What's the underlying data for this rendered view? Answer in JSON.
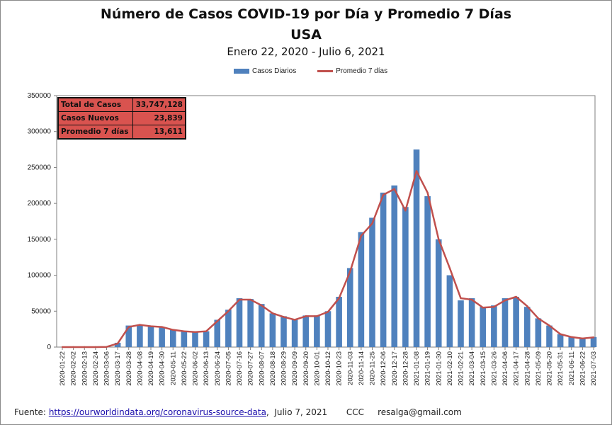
{
  "header": {
    "title": "Número de  Casos  COVID-19 por Día y Promedio 7 Días",
    "subtitle": "USA",
    "date_range": "Enero 22, 2020 - Julio 6, 2021"
  },
  "legend": {
    "bars": "Casos Diarios",
    "line": "Promedio 7 días"
  },
  "stats": {
    "total_label": "Total de Casos",
    "total_value": "33,747,128",
    "new_label": "Casos Nuevos",
    "new_value": "23,839",
    "avg_label": "Promedio 7 días",
    "avg_value": "13,611"
  },
  "footer": {
    "prefix": "Fuente:",
    "link": "https://ourworldindata.org/coronavirus-source-data",
    "suffix": ",  Julio 7, 2021       CCC     resalga@gmail.com"
  },
  "colors": {
    "bars": "#4f81bd",
    "line": "#c0504d",
    "stats_bg": "#d9534f"
  },
  "chart_data": {
    "type": "bar",
    "title": "Número de  Casos  COVID-19 por Día y Promedio 7 Días",
    "ylim": [
      0,
      350000
    ],
    "y_ticks": [
      0,
      50000,
      100000,
      150000,
      200000,
      250000,
      300000,
      350000
    ],
    "x_tick_labels": [
      "2020-01-22",
      "2020-02-02",
      "2020-02-13",
      "2020-02-24",
      "2020-03-06",
      "2020-03-17",
      "2020-03-28",
      "2020-04-08",
      "2020-04-19",
      "2020-04-30",
      "2020-05-11",
      "2020-05-22",
      "2020-06-02",
      "2020-06-13",
      "2020-06-24",
      "2020-07-05",
      "2020-07-16",
      "2020-07-27",
      "2020-08-07",
      "2020-08-18",
      "2020-08-29",
      "2020-09-09",
      "2020-09-20",
      "2020-10-01",
      "2020-10-12",
      "2020-10-23",
      "2020-11-03",
      "2020-11-14",
      "2020-11-25",
      "2020-12-06",
      "2020-12-17",
      "2020-12-28",
      "2021-01-08",
      "2021-01-19",
      "2021-01-30",
      "2021-02-10",
      "2021-02-21",
      "2021-03-04",
      "2021-03-15",
      "2021-03-26",
      "2021-04-06",
      "2021-04-17",
      "2021-04-28",
      "2021-05-09",
      "2021-05-20",
      "2021-05-31",
      "2021-06-11",
      "2021-06-22",
      "2021-07-03"
    ],
    "series": [
      {
        "name": "Casos Diarios",
        "kind": "bar",
        "x": [
          "2020-01-22",
          "2020-02-02",
          "2020-02-13",
          "2020-02-24",
          "2020-03-06",
          "2020-03-17",
          "2020-03-28",
          "2020-04-08",
          "2020-04-19",
          "2020-04-30",
          "2020-05-11",
          "2020-05-22",
          "2020-06-02",
          "2020-06-13",
          "2020-06-24",
          "2020-07-05",
          "2020-07-16",
          "2020-07-27",
          "2020-08-07",
          "2020-08-18",
          "2020-08-29",
          "2020-09-09",
          "2020-09-20",
          "2020-10-01",
          "2020-10-12",
          "2020-10-23",
          "2020-11-03",
          "2020-11-14",
          "2020-11-25",
          "2020-12-06",
          "2020-12-17",
          "2020-12-28",
          "2021-01-08",
          "2021-01-19",
          "2021-01-30",
          "2021-02-10",
          "2021-02-21",
          "2021-03-04",
          "2021-03-15",
          "2021-03-26",
          "2021-04-06",
          "2021-04-17",
          "2021-04-28",
          "2021-05-09",
          "2021-05-20",
          "2021-05-31",
          "2021-06-11",
          "2021-06-22",
          "2021-07-03"
        ],
        "values": [
          0,
          0,
          0,
          0,
          300,
          6000,
          30000,
          31000,
          29000,
          28000,
          24000,
          22000,
          21000,
          22000,
          38000,
          52000,
          68000,
          67000,
          60000,
          47000,
          43000,
          38000,
          44000,
          44000,
          50000,
          70000,
          110000,
          160000,
          180000,
          215000,
          225000,
          195000,
          275000,
          210000,
          150000,
          100000,
          65000,
          68000,
          56000,
          58000,
          68000,
          70000,
          56000,
          40000,
          30000,
          18000,
          14000,
          12000,
          14000
        ]
      },
      {
        "name": "Promedio 7 días",
        "kind": "line",
        "x": [
          "2020-01-22",
          "2020-02-02",
          "2020-02-13",
          "2020-02-24",
          "2020-03-06",
          "2020-03-17",
          "2020-03-28",
          "2020-04-08",
          "2020-04-19",
          "2020-04-30",
          "2020-05-11",
          "2020-05-22",
          "2020-06-02",
          "2020-06-13",
          "2020-06-24",
          "2020-07-05",
          "2020-07-16",
          "2020-07-27",
          "2020-08-07",
          "2020-08-18",
          "2020-08-29",
          "2020-09-09",
          "2020-09-20",
          "2020-10-01",
          "2020-10-12",
          "2020-10-23",
          "2020-11-03",
          "2020-11-14",
          "2020-11-25",
          "2020-12-06",
          "2020-12-17",
          "2020-12-28",
          "2021-01-08",
          "2021-01-19",
          "2021-01-30",
          "2021-02-10",
          "2021-02-21",
          "2021-03-04",
          "2021-03-15",
          "2021-03-26",
          "2021-04-06",
          "2021-04-17",
          "2021-04-28",
          "2021-05-09",
          "2021-05-20",
          "2021-05-31",
          "2021-06-11",
          "2021-06-22",
          "2021-07-03"
        ],
        "values": [
          0,
          0,
          0,
          0,
          300,
          5000,
          28000,
          31000,
          29000,
          28000,
          24000,
          22000,
          21000,
          22000,
          36000,
          50000,
          66000,
          66000,
          58000,
          47000,
          42000,
          38000,
          43000,
          43000,
          49000,
          68000,
          105000,
          155000,
          172000,
          212000,
          220000,
          190000,
          245000,
          215000,
          150000,
          110000,
          68000,
          66000,
          55000,
          56000,
          65000,
          70000,
          57000,
          40000,
          30000,
          18000,
          14000,
          12000,
          13600
        ]
      }
    ]
  }
}
